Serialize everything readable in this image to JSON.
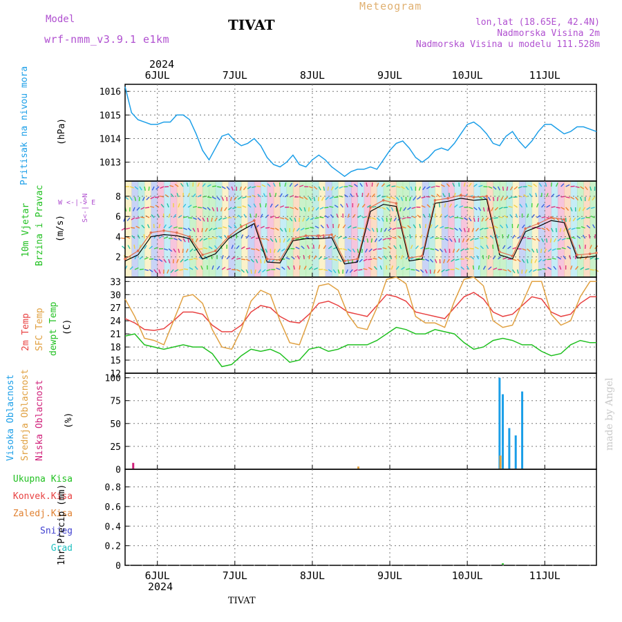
{
  "header": {
    "model_label": "Model",
    "model_name": "wrf-nmm_v3.9.1 e1km",
    "station": "TIVAT",
    "meteogram_label": "Meteogram",
    "lonlat": "lon,lat (18.65E, 42.4N)",
    "elevation": "Nadmorska Visina 2m",
    "model_elevation": "Nadmorska Visina u modelu 111.528m",
    "year_top": "2024",
    "year_bottom": "2024",
    "footer_station": "TIVAT",
    "watermark": "made by Angel"
  },
  "colors": {
    "pressure": "#1a9ee8",
    "temp2m": "#e84040",
    "sfc_temp": "#e0a040",
    "dewpt": "#20c020",
    "wind_line": "#000000",
    "wind_gust": "#e07050",
    "high_cloud": "#1a9ee8",
    "mid_cloud": "#e0a040",
    "low_cloud": "#d0207a",
    "precip_total": "#20c020",
    "precip_conv": "#e84040",
    "precip_frozen": "#e08030",
    "snow": "#4040d0",
    "grad": "#20c0c0",
    "purple_text": "#b050d0"
  },
  "dates": [
    "6JUL",
    "7JUL",
    "8JUL",
    "9JUL",
    "10JUL",
    "11JUL"
  ],
  "panels": {
    "pressure": {
      "ylabels": [
        "Pritisak na nivou mora"
      ],
      "unit": "(hPa)",
      "ticks": [
        1013,
        1014,
        1015,
        1016
      ]
    },
    "wind": {
      "ylabels": [
        "10m Vjetar",
        "Brzina i Pravac"
      ],
      "unit": "(m/s)",
      "ticks": [
        2,
        4,
        6,
        8
      ],
      "compass_label": "W <-|-> E",
      "compass_ns": "S<-|->N"
    },
    "temp": {
      "ylabels": [
        "2m Temp",
        "SFC Temp",
        "dewpt Temp"
      ],
      "unit": "(C)",
      "ticks": [
        12,
        15,
        18,
        21,
        24,
        27,
        30,
        33
      ]
    },
    "cloud": {
      "ylabels": [
        "Visoka Oblacnost",
        "Srednja Oblacnost",
        "Niska Oblacnost"
      ],
      "unit": "(%)",
      "ticks": [
        0,
        25,
        50,
        75,
        100
      ]
    },
    "precip": {
      "left_labels": [
        "Ukupna Kisa",
        "Konvek.Kisa",
        "Zaledj.Kisa",
        "Snijeg",
        "Grad"
      ],
      "unit": "1hr Precip (mm)",
      "ticks": [
        0,
        0.2,
        0.4,
        0.6,
        0.8
      ]
    }
  },
  "chart_data": [
    {
      "type": "line",
      "title": "Pritisak na nivou mora",
      "x_hours": [
        0,
        2,
        4,
        6,
        8,
        10,
        12,
        14,
        16,
        18,
        20,
        22,
        24,
        26,
        28,
        30,
        32,
        34,
        36,
        38,
        40,
        42,
        44,
        46,
        48,
        50,
        52,
        54,
        56,
        58,
        60,
        62,
        64,
        66,
        68,
        70,
        72,
        74,
        76,
        78,
        80,
        82,
        84,
        86,
        88,
        90,
        92,
        94,
        96,
        98,
        100,
        102,
        104,
        106,
        108,
        110,
        112,
        114,
        116,
        118,
        120,
        122,
        124,
        126,
        128,
        130,
        132,
        134,
        136,
        138,
        140,
        142,
        144,
        146
      ],
      "series": [
        {
          "values": [
            1016.2,
            1015.1,
            1014.8,
            1014.7,
            1014.6,
            1014.6,
            1014.7,
            1014.7,
            1015.0,
            1015.0,
            1014.8,
            1014.2,
            1013.5,
            1013.1,
            1013.6,
            1014.1,
            1014.2,
            1013.9,
            1013.7,
            1013.8,
            1014.0,
            1013.7,
            1013.2,
            1012.9,
            1012.8,
            1013.0,
            1013.3,
            1012.9,
            1012.8,
            1013.1,
            1013.3,
            1013.1,
            1012.8,
            1012.6,
            1012.4,
            1012.6,
            1012.7,
            1012.7,
            1012.8,
            1012.7,
            1013.1,
            1013.5,
            1013.8,
            1013.9,
            1013.6,
            1013.2,
            1013.0,
            1013.2,
            1013.5,
            1013.6,
            1013.5,
            1013.8,
            1014.2,
            1014.6,
            1014.7,
            1014.5,
            1014.2,
            1013.8,
            1013.7,
            1014.1,
            1014.3,
            1013.9,
            1013.6,
            1013.9,
            1014.3,
            1014.6,
            1014.6,
            1014.4,
            1014.2,
            1014.3,
            1014.5,
            1014.5,
            1014.4,
            1014.3
          ]
        }
      ],
      "ylim": [
        1012.2,
        1016.3
      ]
    },
    {
      "type": "line",
      "title": "10m Vjetar",
      "x_hours": [
        0,
        4,
        8,
        12,
        16,
        20,
        24,
        28,
        32,
        36,
        40,
        44,
        48,
        52,
        56,
        60,
        64,
        68,
        72,
        76,
        80,
        84,
        88,
        92,
        96,
        100,
        104,
        108,
        112,
        116,
        120,
        124,
        128,
        132,
        136,
        140,
        144,
        146
      ],
      "series": [
        {
          "name": "speed",
          "values": [
            1.6,
            2.2,
            4.0,
            4.2,
            4.1,
            3.8,
            1.8,
            2.3,
            3.8,
            4.6,
            5.3,
            1.5,
            1.4,
            3.6,
            3.8,
            3.8,
            3.9,
            1.3,
            1.5,
            6.5,
            7.2,
            7.0,
            1.6,
            1.8,
            7.3,
            7.5,
            7.8,
            7.6,
            7.7,
            2.2,
            1.8,
            4.5,
            5.0,
            5.6,
            5.4,
            1.9,
            2.0,
            2.1
          ]
        },
        {
          "name": "gust",
          "values": [
            1.8,
            2.6,
            4.4,
            4.6,
            4.4,
            4.0,
            2.2,
            2.6,
            4.0,
            5.0,
            5.6,
            1.8,
            1.7,
            3.8,
            4.1,
            4.1,
            4.2,
            1.6,
            1.8,
            6.9,
            7.6,
            7.3,
            1.9,
            2.1,
            7.6,
            7.8,
            8.1,
            7.9,
            8.0,
            2.5,
            2.1,
            4.8,
            5.3,
            5.9,
            5.7,
            2.2,
            2.3,
            2.4
          ]
        }
      ],
      "ylim": [
        0,
        9.5
      ]
    },
    {
      "type": "line",
      "title": "2m Temp / SFC Temp / dewpt Temp",
      "x_hours": [
        0,
        3,
        6,
        9,
        12,
        15,
        18,
        21,
        24,
        27,
        30,
        33,
        36,
        39,
        42,
        45,
        48,
        51,
        54,
        57,
        60,
        63,
        66,
        69,
        72,
        75,
        78,
        81,
        84,
        87,
        90,
        93,
        96,
        99,
        102,
        105,
        108,
        111,
        114,
        117,
        120,
        123,
        126,
        129,
        132,
        135,
        138,
        141,
        144,
        146
      ],
      "series": [
        {
          "name": "2m Temp",
          "values": [
            24.5,
            23.5,
            22.0,
            21.8,
            22.2,
            24.0,
            26.0,
            26.0,
            25.5,
            23.0,
            21.5,
            21.5,
            23.0,
            26.0,
            27.5,
            27.0,
            25.0,
            23.8,
            23.5,
            25.5,
            28.0,
            28.5,
            27.5,
            26.0,
            25.5,
            25.0,
            27.5,
            30.0,
            29.5,
            28.5,
            26.0,
            25.5,
            25.0,
            24.5,
            27.0,
            29.5,
            30.5,
            29.0,
            26.0,
            25.0,
            25.5,
            27.5,
            29.5,
            29.0,
            26.0,
            25.0,
            25.5,
            28.0,
            29.5,
            29.5
          ]
        },
        {
          "name": "SFC Temp",
          "values": [
            29.0,
            25.0,
            20.0,
            19.5,
            18.5,
            24.0,
            29.5,
            30.0,
            28.0,
            22.0,
            18.0,
            17.5,
            22.0,
            28.5,
            31.0,
            30.0,
            24.0,
            19.0,
            18.5,
            24.5,
            32.0,
            32.5,
            31.0,
            25.5,
            22.5,
            22.0,
            27.0,
            33.5,
            34.0,
            32.5,
            25.0,
            23.5,
            23.5,
            22.5,
            28.5,
            33.5,
            34.0,
            32.0,
            24.0,
            22.5,
            23.0,
            28.0,
            33.0,
            33.0,
            25.5,
            23.0,
            24.0,
            29.5,
            33.0,
            33.0
          ]
        },
        {
          "name": "dewpt Temp",
          "values": [
            20.5,
            21.0,
            18.5,
            18.0,
            17.5,
            18.0,
            18.5,
            18.0,
            18.0,
            16.5,
            13.5,
            14.0,
            16.0,
            17.5,
            17.0,
            17.5,
            16.5,
            14.5,
            15.0,
            17.5,
            18.0,
            17.0,
            17.5,
            18.5,
            18.5,
            18.5,
            19.5,
            21.0,
            22.5,
            22.0,
            21.0,
            21.0,
            22.0,
            21.5,
            21.0,
            19.0,
            17.5,
            18.0,
            19.5,
            20.0,
            19.5,
            18.5,
            18.5,
            17.0,
            16.0,
            16.5,
            18.5,
            19.5,
            19.0,
            19.0
          ]
        }
      ],
      "ylim": [
        12,
        34
      ]
    },
    {
      "type": "bar",
      "title": "Oblacnost",
      "x_hours": [
        2,
        72,
        96,
        115,
        116,
        117,
        119,
        121,
        123
      ],
      "series": [
        {
          "name": "Visoka Oblacnost",
          "values": [
            0,
            0,
            0,
            0,
            100,
            82,
            45,
            37,
            85
          ]
        },
        {
          "name": "Srednja Oblacnost",
          "values": [
            0,
            3,
            0,
            0,
            15,
            0,
            0,
            0,
            0
          ]
        },
        {
          "name": "Niska Oblacnost",
          "values": [
            7,
            0,
            0,
            0,
            0,
            0,
            0,
            0,
            0
          ]
        }
      ],
      "ylim": [
        0,
        105
      ]
    },
    {
      "type": "bar",
      "title": "1hr Precip",
      "x_hours": [
        0,
        117
      ],
      "series": [
        {
          "name": "Ukupna Kisa",
          "values": [
            0,
            0.02
          ]
        }
      ],
      "ylim": [
        0,
        0.98
      ]
    }
  ]
}
